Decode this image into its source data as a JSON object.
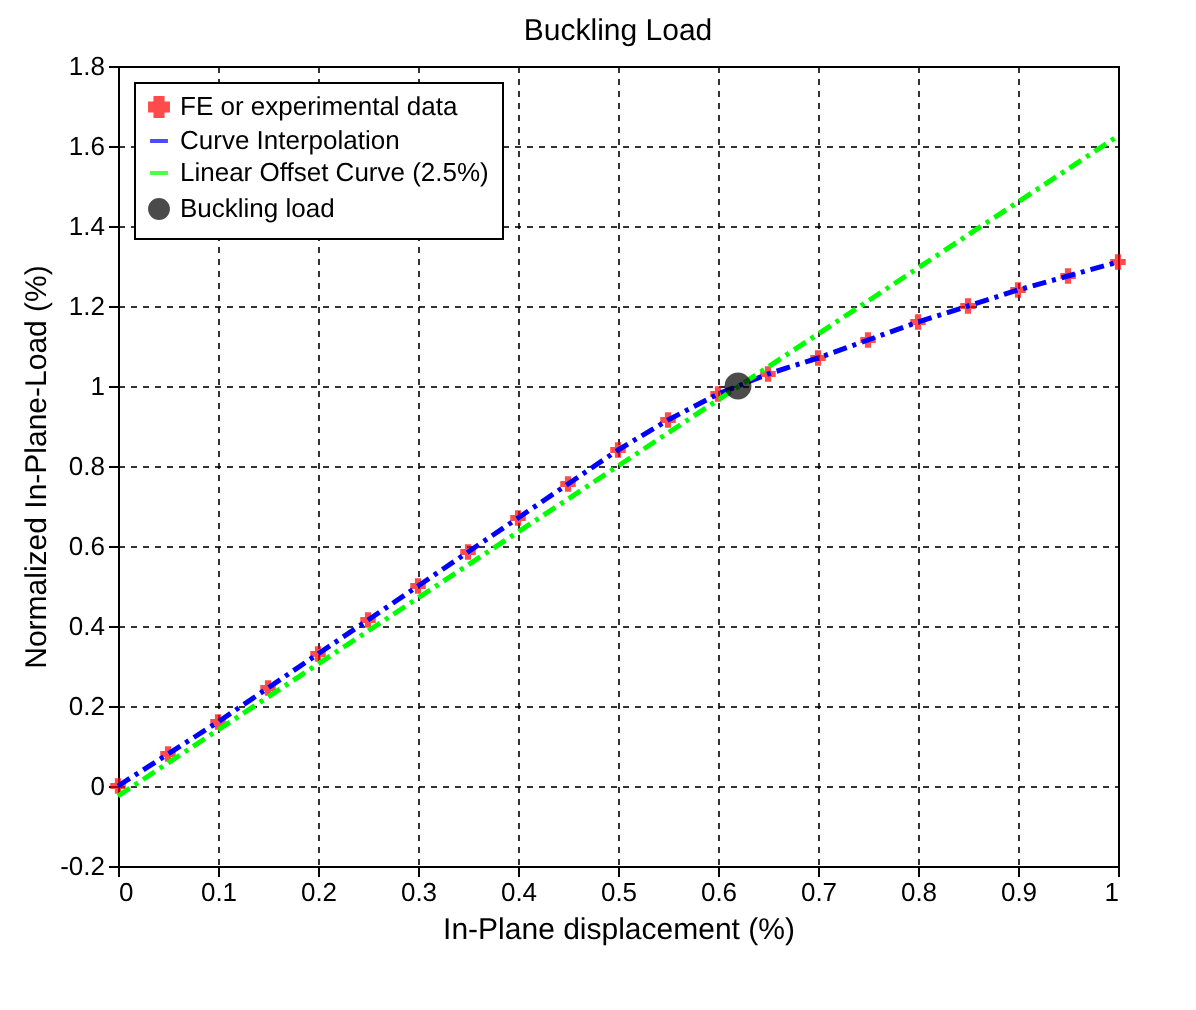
{
  "chart_data": {
    "type": "line",
    "title": "Buckling Load",
    "xlabel": "In-Plane displacement (%)",
    "ylabel": "Normalized In-Plane-Load (%)",
    "xlim": [
      0,
      1
    ],
    "xticks": [
      0,
      0.1,
      0.2,
      0.3,
      0.4,
      0.5,
      0.6,
      0.7,
      0.8,
      0.9,
      1
    ],
    "ylim": [
      -0.2,
      1.8
    ],
    "yticks": [
      -0.2,
      0,
      0.2,
      0.4,
      0.6,
      0.8,
      1,
      1.2,
      1.4,
      1.6,
      1.8
    ],
    "grid": true,
    "legend": "top left",
    "series": [
      {
        "name": "FE or experimental data",
        "type": "scatter",
        "marker": "cross",
        "color": "#ff0000",
        "x": [
          0,
          0.05,
          0.1,
          0.15,
          0.2,
          0.25,
          0.3,
          0.35,
          0.4,
          0.45,
          0.5,
          0.55,
          0.6,
          0.65,
          0.7,
          0.75,
          0.8,
          0.85,
          0.9,
          0.95,
          1
        ],
        "values": [
          0,
          0.08,
          0.16,
          0.245,
          0.33,
          0.415,
          0.5,
          0.585,
          0.67,
          0.755,
          0.84,
          0.915,
          0.98,
          1.03,
          1.07,
          1.115,
          1.16,
          1.2,
          1.24,
          1.275,
          1.31
        ]
      },
      {
        "name": "Curve Interpolation",
        "type": "line",
        "line_style": "dashed",
        "color": "#0000ff",
        "x": [
          0,
          0.05,
          0.1,
          0.15,
          0.2,
          0.25,
          0.3,
          0.35,
          0.4,
          0.45,
          0.5,
          0.55,
          0.6,
          0.65,
          0.7,
          0.75,
          0.8,
          0.85,
          0.9,
          0.95,
          1
        ],
        "values": [
          0,
          0.08,
          0.16,
          0.245,
          0.33,
          0.415,
          0.5,
          0.585,
          0.67,
          0.755,
          0.84,
          0.915,
          0.98,
          1.03,
          1.07,
          1.115,
          1.16,
          1.2,
          1.24,
          1.275,
          1.31
        ]
      },
      {
        "name": "Linear Offset Curve (2.5%)",
        "type": "line",
        "line_style": "dashed",
        "color": "#00ff00",
        "x": [
          0,
          1
        ],
        "values": [
          -0.025,
          1.625
        ]
      },
      {
        "name": "Buckling load",
        "type": "scatter",
        "marker": "circle",
        "color": "#000000",
        "x": [
          0.62
        ],
        "values": [
          1.0
        ]
      }
    ]
  }
}
